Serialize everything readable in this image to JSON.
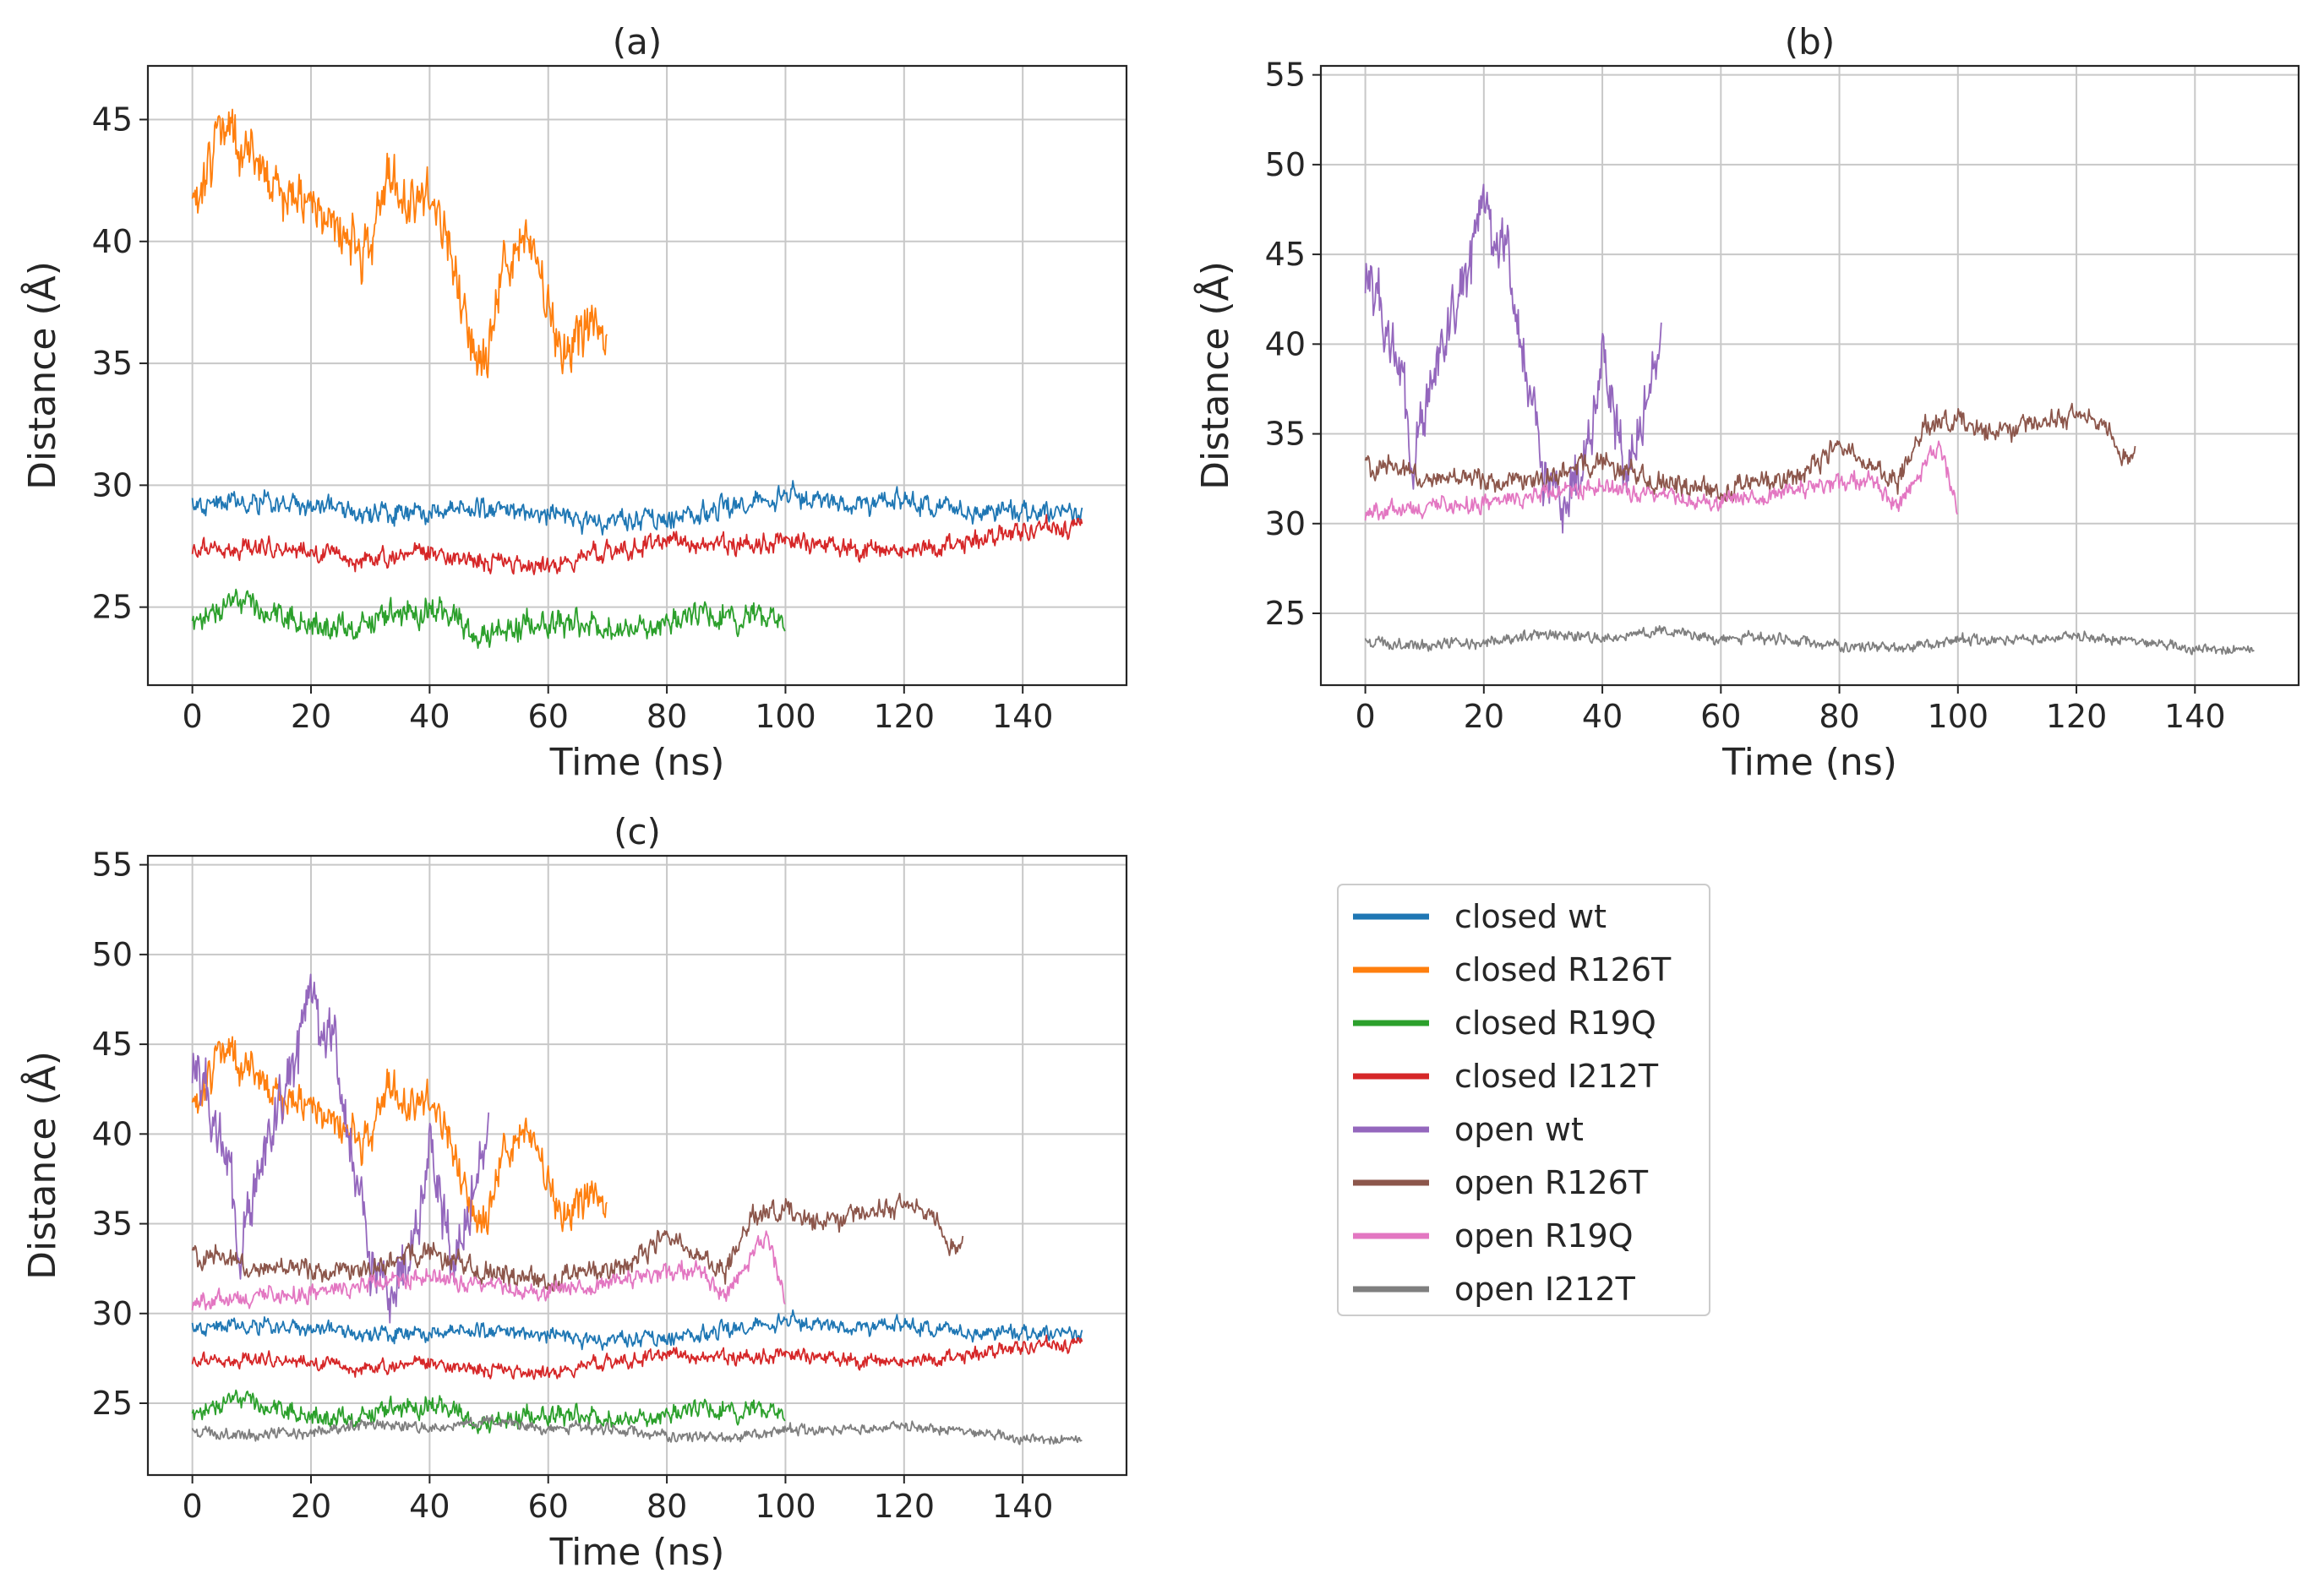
{
  "chart_data": {
    "type": "line",
    "colors": {
      "closed wt": "#1f77b4",
      "closed R126T": "#ff7f0e",
      "closed R19Q": "#2ca02c",
      "closed I212T": "#d62728",
      "open wt": "#9467bd",
      "open R126T": "#8c564b",
      "open R19Q": "#e377c2",
      "open I212T": "#7f7f7f"
    },
    "legend": {
      "placement": "right of panel (c)",
      "entries": [
        "closed wt",
        "closed R126T",
        "closed R19Q",
        "closed I212T",
        "open wt",
        "open R126T",
        "open R19Q",
        "open I212T"
      ]
    },
    "series_shapes": {
      "closed wt": [
        [
          0,
          29.2
        ],
        [
          10,
          29.3
        ],
        [
          20,
          29.1
        ],
        [
          30,
          28.9
        ],
        [
          40,
          28.8
        ],
        [
          50,
          29.0
        ],
        [
          60,
          28.8
        ],
        [
          70,
          28.5
        ],
        [
          80,
          28.6
        ],
        [
          90,
          29.1
        ],
        [
          100,
          29.5
        ],
        [
          110,
          29.2
        ],
        [
          120,
          29.4
        ],
        [
          130,
          29.0
        ],
        [
          140,
          28.8
        ],
        [
          150,
          28.9
        ]
      ],
      "closed R126T": [
        [
          0,
          41.0
        ],
        [
          2,
          42.5
        ],
        [
          5,
          45.0
        ],
        [
          8,
          43.5
        ],
        [
          10,
          43.5
        ],
        [
          15,
          42.0
        ],
        [
          20,
          41.5
        ],
        [
          25,
          40.5
        ],
        [
          28,
          39.5
        ],
        [
          30,
          39.8
        ],
        [
          33,
          43.0
        ],
        [
          36,
          41.5
        ],
        [
          40,
          42.0
        ],
        [
          43,
          40.0
        ],
        [
          46,
          37.0
        ],
        [
          48,
          35.0
        ],
        [
          50,
          35.5
        ],
        [
          52,
          38.5
        ],
        [
          55,
          40.0
        ],
        [
          58,
          39.5
        ],
        [
          60,
          37.0
        ],
        [
          62,
          35.5
        ],
        [
          65,
          36.0
        ],
        [
          68,
          37.0
        ],
        [
          70,
          35.5
        ]
      ],
      "closed R19Q": [
        [
          0,
          24.5
        ],
        [
          8,
          25.3
        ],
        [
          15,
          24.6
        ],
        [
          25,
          24.3
        ],
        [
          35,
          24.8
        ],
        [
          42,
          25.0
        ],
        [
          48,
          23.8
        ],
        [
          55,
          24.2
        ],
        [
          65,
          24.3
        ],
        [
          75,
          24.1
        ],
        [
          85,
          24.6
        ],
        [
          95,
          24.6
        ],
        [
          100,
          24.3
        ]
      ],
      "closed I212T": [
        [
          0,
          27.3
        ],
        [
          10,
          27.5
        ],
        [
          20,
          27.2
        ],
        [
          30,
          27.0
        ],
        [
          40,
          27.2
        ],
        [
          50,
          26.8
        ],
        [
          60,
          26.7
        ],
        [
          70,
          27.3
        ],
        [
          80,
          27.7
        ],
        [
          90,
          27.6
        ],
        [
          100,
          27.7
        ],
        [
          110,
          27.5
        ],
        [
          120,
          27.3
        ],
        [
          130,
          27.6
        ],
        [
          140,
          28.2
        ],
        [
          150,
          28.4
        ]
      ],
      "open wt": [
        [
          0,
          44.0
        ],
        [
          3,
          42.0
        ],
        [
          6,
          38.5
        ],
        [
          8,
          33.5
        ],
        [
          10,
          36.0
        ],
        [
          13,
          39.5
        ],
        [
          15,
          41.5
        ],
        [
          17,
          43.0
        ],
        [
          19,
          47.0
        ],
        [
          20,
          49.0
        ],
        [
          22,
          44.0
        ],
        [
          24,
          45.5
        ],
        [
          26,
          41.0
        ],
        [
          28,
          37.5
        ],
        [
          30,
          33.0
        ],
        [
          32,
          32.5
        ],
        [
          34,
          31.0
        ],
        [
          36,
          33.0
        ],
        [
          38,
          35.0
        ],
        [
          40,
          40.0
        ],
        [
          42,
          36.0
        ],
        [
          44,
          33.0
        ],
        [
          46,
          34.5
        ],
        [
          48,
          38.0
        ],
        [
          50,
          40.0
        ]
      ],
      "open R126T": [
        [
          0,
          33.3
        ],
        [
          10,
          32.8
        ],
        [
          20,
          32.4
        ],
        [
          30,
          32.5
        ],
        [
          40,
          33.5
        ],
        [
          50,
          32.3
        ],
        [
          60,
          31.8
        ],
        [
          70,
          32.4
        ],
        [
          75,
          33.0
        ],
        [
          80,
          34.5
        ],
        [
          85,
          33.2
        ],
        [
          90,
          32.5
        ],
        [
          95,
          35.5
        ],
        [
          100,
          35.8
        ],
        [
          105,
          35.2
        ],
        [
          110,
          35.3
        ],
        [
          115,
          35.8
        ],
        [
          120,
          36.0
        ],
        [
          125,
          35.5
        ],
        [
          128,
          33.5
        ],
        [
          130,
          34.0
        ]
      ],
      "open R19Q": [
        [
          0,
          30.6
        ],
        [
          10,
          30.9
        ],
        [
          20,
          31.0
        ],
        [
          30,
          31.6
        ],
        [
          40,
          32.2
        ],
        [
          50,
          31.4
        ],
        [
          60,
          31.2
        ],
        [
          70,
          31.8
        ],
        [
          80,
          32.2
        ],
        [
          85,
          32.5
        ],
        [
          90,
          31.0
        ],
        [
          95,
          33.5
        ],
        [
          97,
          34.2
        ],
        [
          100,
          30.8
        ]
      ],
      "open I212T": [
        [
          0,
          23.4
        ],
        [
          10,
          23.2
        ],
        [
          20,
          23.4
        ],
        [
          30,
          23.8
        ],
        [
          40,
          23.6
        ],
        [
          50,
          24.0
        ],
        [
          60,
          23.6
        ],
        [
          70,
          23.6
        ],
        [
          80,
          23.2
        ],
        [
          90,
          23.0
        ],
        [
          100,
          23.5
        ],
        [
          110,
          23.5
        ],
        [
          120,
          23.7
        ],
        [
          130,
          23.5
        ],
        [
          140,
          23.0
        ],
        [
          150,
          23.0
        ]
      ]
    },
    "panels": [
      {
        "name": "panel-a",
        "title": "(a)",
        "xlabel": "Time (ns)",
        "ylabel": "Distance (Å)",
        "xlim": [
          -7.5,
          157.5
        ],
        "ylim": [
          21.8,
          47.2
        ],
        "xticks": [
          0,
          20,
          40,
          60,
          80,
          100,
          120,
          140
        ],
        "yticks": [
          25,
          30,
          35,
          40,
          45
        ],
        "grid": true,
        "series": [
          {
            "name": "closed wt",
            "end": 150,
            "noise": 0.4
          },
          {
            "name": "closed R126T",
            "end": 70,
            "noise": 1.0
          },
          {
            "name": "closed R19Q",
            "end": 100,
            "noise": 0.5
          },
          {
            "name": "closed I212T",
            "end": 150,
            "noise": 0.35
          }
        ]
      },
      {
        "name": "panel-b",
        "title": "(b)",
        "xlabel": "Time (ns)",
        "ylabel": "Distance (Å)",
        "xlim": [
          -7.5,
          157.5
        ],
        "ylim": [
          21.0,
          55.5
        ],
        "xticks": [
          0,
          20,
          40,
          60,
          80,
          100,
          120,
          140
        ],
        "yticks": [
          25,
          30,
          35,
          40,
          45,
          50,
          55
        ],
        "grid": true,
        "series": [
          {
            "name": "open wt",
            "end": 50,
            "noise": 1.6
          },
          {
            "name": "open R126T",
            "end": 130,
            "noise": 0.55
          },
          {
            "name": "open R19Q",
            "end": 100,
            "noise": 0.45
          },
          {
            "name": "open I212T",
            "end": 150,
            "noise": 0.28
          }
        ]
      },
      {
        "name": "panel-c",
        "title": "(c)",
        "xlabel": "Time (ns)",
        "ylabel": "Distance (Å)",
        "xlim": [
          -7.5,
          157.5
        ],
        "ylim": [
          21.0,
          55.5
        ],
        "xticks": [
          0,
          20,
          40,
          60,
          80,
          100,
          120,
          140
        ],
        "yticks": [
          25,
          30,
          35,
          40,
          45,
          50,
          55
        ],
        "grid": true,
        "series": [
          {
            "name": "closed wt",
            "end": 150,
            "noise": 0.4
          },
          {
            "name": "closed R126T",
            "end": 70,
            "noise": 1.0
          },
          {
            "name": "closed R19Q",
            "end": 100,
            "noise": 0.5
          },
          {
            "name": "closed I212T",
            "end": 150,
            "noise": 0.35
          },
          {
            "name": "open wt",
            "end": 50,
            "noise": 1.6
          },
          {
            "name": "open R126T",
            "end": 130,
            "noise": 0.55
          },
          {
            "name": "open R19Q",
            "end": 100,
            "noise": 0.45
          },
          {
            "name": "open I212T",
            "end": 150,
            "noise": 0.28
          }
        ]
      }
    ]
  }
}
